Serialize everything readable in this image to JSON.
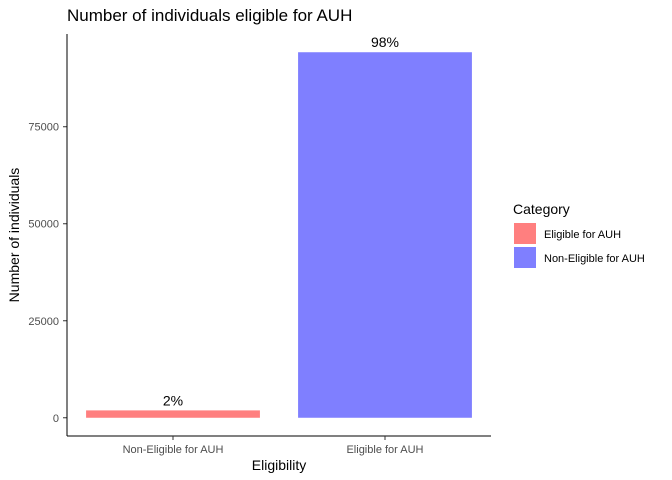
{
  "chart_data": {
    "type": "bar",
    "title": "Number of individuals eligible for AUH",
    "xlabel": "Eligibility",
    "ylabel": "Number of individuals",
    "categories": [
      "Non-Eligible for AUH",
      "Eligible for AUH"
    ],
    "bars": [
      {
        "category": "Non-Eligible for AUH",
        "value": 1900,
        "label": "2%",
        "fill": "Eligible for AUH"
      },
      {
        "category": "Eligible for AUH",
        "value": 94200,
        "label": "98%",
        "fill": "Non-Eligible for AUH"
      }
    ],
    "yticks": [
      0,
      25000,
      50000,
      75000
    ],
    "ytick_labels": [
      "0",
      "25000",
      "50000",
      "75000"
    ],
    "ylim": [
      -4700,
      98900
    ],
    "grid": false,
    "legend": {
      "title": "Category",
      "position": "right",
      "entries": [
        {
          "label": "Eligible for AUH",
          "color": "#F8766D"
        },
        {
          "label": "Non-Eligible for AUH",
          "color": "#7F7FFF"
        }
      ]
    },
    "colors": {
      "Eligible for AUH": "#FF7F7F",
      "Non-Eligible for AUH": "#7F7FFF"
    }
  }
}
